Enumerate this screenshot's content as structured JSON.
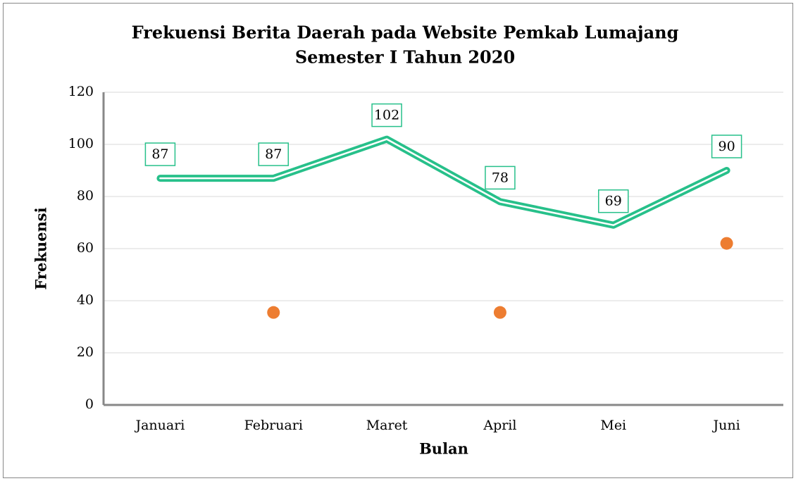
{
  "chart_data": {
    "type": "line",
    "title": "Frekuensi Berita Daerah pada Website Pemkab Lumajang",
    "subtitle": "Semester I Tahun 2020",
    "xlabel": "Bulan",
    "ylabel": "Frekuensi",
    "categories": [
      "Januari",
      "Februari",
      "Maret",
      "April",
      "Mei",
      "Juni"
    ],
    "series": [
      {
        "color": "#27c08a",
        "values": [
          87,
          87,
          102,
          78,
          69,
          90
        ],
        "data_labels": true
      },
      {
        "color": "#ed7d31",
        "values": [
          null,
          35.5,
          null,
          35.5,
          null,
          62
        ],
        "markers_only": true
      }
    ],
    "ylim": [
      0,
      120
    ],
    "yticks": [
      0,
      20,
      40,
      60,
      80,
      100,
      120
    ],
    "grid": true
  }
}
